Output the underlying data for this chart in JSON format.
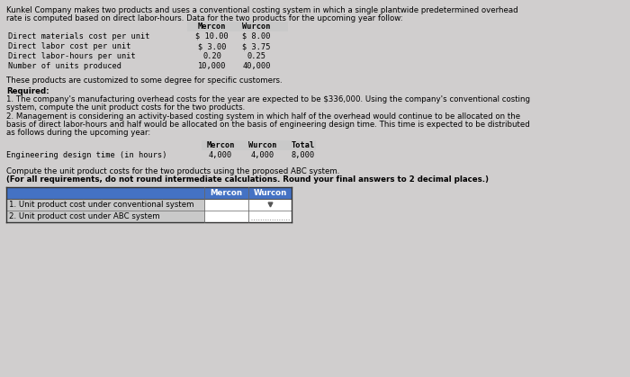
{
  "bg_color": "#d0cece",
  "title_line1": "Kunkel Company makes two products and uses a conventional costing system in which a single plantwide predetermined overhead",
  "title_line2": "rate is computed based on direct labor-hours. Data for the two products for the upcoming year follow:",
  "table1_col_labels": [
    "Mercon",
    "Wurcon"
  ],
  "table1_rows": [
    [
      "Direct materials cost per unit",
      "$ 10.00",
      "$ 8.00"
    ],
    [
      "Direct labor cost per unit",
      "$ 3.00",
      "$ 3.75"
    ],
    [
      "Direct labor-hours per unit",
      "0.20",
      "0.25"
    ],
    [
      "Number of units produced",
      "10,000",
      "40,000"
    ]
  ],
  "between_text": "These products are customized to some degree for specific customers.",
  "required_label": "Required:",
  "req1_line1": "1. The company's manufacturing overhead costs for the year are expected to be $336,000. Using the company's conventional costing",
  "req1_line2": "system, compute the unit product costs for the two products.",
  "req2_line1": "2. Management is considering an activity-based costing system in which half of the overhead would continue to be allocated on the",
  "req2_line2": "basis of direct labor-hours and half would be allocated on the basis of engineering design time. This time is expected to be distributed",
  "req2_line3": "as follows during the upcoming year:",
  "table2_col_labels": [
    "Mercon",
    "Wurcon",
    "Total"
  ],
  "table2_row_label": "Engineering design time (in hours)",
  "table2_row_vals": [
    "4,000",
    "4,000",
    "8,000"
  ],
  "compute_line1": "Compute the unit product costs for the two products using the proposed ABC system.",
  "compute_line2": "(For all requirements, do not round intermediate calculations. Round your final answers to 2 decimal places.)",
  "table3_col_labels": [
    "Mercon",
    "Wurcon"
  ],
  "table3_rows": [
    "1. Unit product cost under conventional system",
    "2. Unit product cost under ABC system"
  ],
  "table1_hdr_bg": "#c9c9c9",
  "table2_hdr_bg": "#c9c9c9",
  "table3_hdr_bg": "#4472c4",
  "table3_hdr_fg": "#ffffff",
  "table3_row_bg": "#c9c9c9",
  "table3_cell_bg": "#ffffff",
  "mono_font": "monospace",
  "sans_font": "DejaVu Sans",
  "fs": 6.2
}
